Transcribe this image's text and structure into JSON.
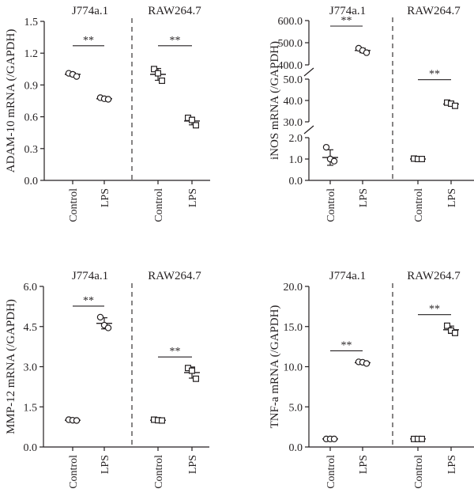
{
  "colors": {
    "ink": "#231f20",
    "background": "#ffffff"
  },
  "chart_data": [
    {
      "type": "scatter",
      "panel": "ADAM-10",
      "ylabel": "ADAM-10 mRNA (/GAPDH)",
      "ylim": [
        0,
        1.5
      ],
      "yticks": [
        "0.0",
        "0.3",
        "0.6",
        "0.9",
        "1.2",
        "1.5"
      ],
      "groups": [
        "J774a.1",
        "RAW264.7"
      ],
      "categories": [
        "Control",
        "LPS"
      ],
      "marker": [
        "circle",
        "square"
      ],
      "significance": "**",
      "series": [
        {
          "cell": "J774a.1",
          "condition": "Control",
          "points": [
            1.01,
            1.0,
            0.98
          ],
          "mean": 1.0
        },
        {
          "cell": "J774a.1",
          "condition": "LPS",
          "points": [
            0.78,
            0.77,
            0.765
          ],
          "mean": 0.77
        },
        {
          "cell": "RAW264.7",
          "condition": "Control",
          "points": [
            1.05,
            1.01,
            0.94
          ],
          "mean": 1.0
        },
        {
          "cell": "RAW264.7",
          "condition": "LPS",
          "points": [
            0.59,
            0.57,
            0.52
          ],
          "mean": 0.56
        }
      ]
    },
    {
      "type": "scatter",
      "panel": "iNOS",
      "ylabel": "iNOS mRNA (/GAPDH)",
      "broken_axis": true,
      "segments": [
        {
          "ylim": [
            0,
            2
          ],
          "yticks": [
            "0.0",
            "1.0",
            "2.0"
          ]
        },
        {
          "ylim": [
            30,
            50
          ],
          "yticks": [
            "30.0",
            "40.0",
            "50.0"
          ]
        },
        {
          "ylim": [
            400,
            600
          ],
          "yticks": [
            "400.0",
            "500.0",
            "600.0"
          ]
        }
      ],
      "groups": [
        "J774a.1",
        "RAW264.7"
      ],
      "categories": [
        "Control",
        "LPS"
      ],
      "marker": [
        "circle",
        "square"
      ],
      "significance": "**",
      "series": [
        {
          "cell": "J774a.1",
          "condition": "Control",
          "points": [
            1.55,
            1.0,
            0.9
          ],
          "mean": 1.07
        },
        {
          "cell": "J774a.1",
          "condition": "LPS",
          "points": [
            475,
            465,
            455
          ],
          "mean": 465
        },
        {
          "cell": "RAW264.7",
          "condition": "Control",
          "points": [
            1.02,
            1.0,
            1.0
          ],
          "mean": 1.0
        },
        {
          "cell": "RAW264.7",
          "condition": "LPS",
          "points": [
            39,
            38.5,
            37.5
          ],
          "mean": 38.3
        }
      ]
    },
    {
      "type": "scatter",
      "panel": "MMP-12",
      "ylabel": "MMP-12 mRNA (/GAPDH)",
      "ylim": [
        0,
        6
      ],
      "yticks": [
        "0.0",
        "1.5",
        "3.0",
        "4.5",
        "6.0"
      ],
      "groups": [
        "J774a.1",
        "RAW264.7"
      ],
      "categories": [
        "Control",
        "LPS"
      ],
      "marker": [
        "circle",
        "square"
      ],
      "significance": "**",
      "series": [
        {
          "cell": "J774a.1",
          "condition": "Control",
          "points": [
            1.02,
            1.0,
            0.99
          ],
          "mean": 1.0
        },
        {
          "cell": "J774a.1",
          "condition": "LPS",
          "points": [
            4.85,
            4.55,
            4.45
          ],
          "mean": 4.62
        },
        {
          "cell": "RAW264.7",
          "condition": "Control",
          "points": [
            1.02,
            1.0,
            0.99
          ],
          "mean": 1.0
        },
        {
          "cell": "RAW264.7",
          "condition": "LPS",
          "points": [
            2.95,
            2.85,
            2.55
          ],
          "mean": 2.78
        }
      ]
    },
    {
      "type": "scatter",
      "panel": "TNF-a",
      "ylabel": "TNF-a mRNA (/GAPDH)",
      "ylim": [
        0,
        20
      ],
      "yticks": [
        "0.0",
        "5.0",
        "10.0",
        "15.0",
        "20.0"
      ],
      "groups": [
        "J774a.1",
        "RAW264.7"
      ],
      "categories": [
        "Control",
        "LPS"
      ],
      "marker": [
        "circle",
        "square"
      ],
      "significance": "**",
      "series": [
        {
          "cell": "J774a.1",
          "condition": "Control",
          "points": [
            1.0,
            1.0,
            1.0
          ],
          "mean": 1.0
        },
        {
          "cell": "J774a.1",
          "condition": "LPS",
          "points": [
            10.6,
            10.55,
            10.4
          ],
          "mean": 10.5
        },
        {
          "cell": "RAW264.7",
          "condition": "Control",
          "points": [
            1.0,
            1.0,
            1.0
          ],
          "mean": 1.0
        },
        {
          "cell": "RAW264.7",
          "condition": "LPS",
          "points": [
            15.1,
            14.5,
            14.2
          ],
          "mean": 14.6
        }
      ]
    }
  ]
}
